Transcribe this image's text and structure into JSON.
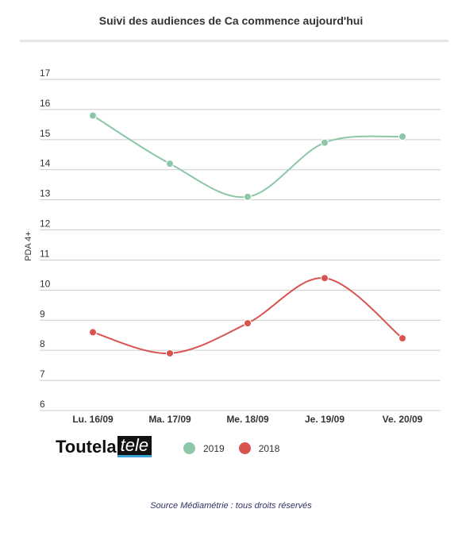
{
  "chart_title": "Suivi des audiences de Ca commence aujourd'hui",
  "source_note": "Source Médiamétrie : tous droits réservés",
  "logo": {
    "part1": "Toutela",
    "part2": "tele"
  },
  "chart_data": {
    "type": "line",
    "title": "Suivi des audiences de Ca commence aujourd'hui",
    "xlabel": "",
    "ylabel": "PDA 4+",
    "categories": [
      "Lu. 16/09",
      "Ma. 17/09",
      "Me. 18/09",
      "Je. 19/09",
      "Ve. 20/09"
    ],
    "y_ticks": [
      "6",
      "7",
      "8",
      "9",
      "10",
      "11",
      "12",
      "13",
      "14",
      "15",
      "16",
      "17"
    ],
    "ylim": [
      6,
      17
    ],
    "grid": true,
    "legend_position": "bottom",
    "series": [
      {
        "name": "2019",
        "color": "#8cc7a8",
        "values": [
          15.8,
          14.2,
          13.1,
          14.9,
          15.1
        ]
      },
      {
        "name": "2018",
        "color": "#d9534f",
        "values": [
          8.6,
          7.9,
          8.9,
          10.4,
          8.4
        ]
      }
    ]
  }
}
